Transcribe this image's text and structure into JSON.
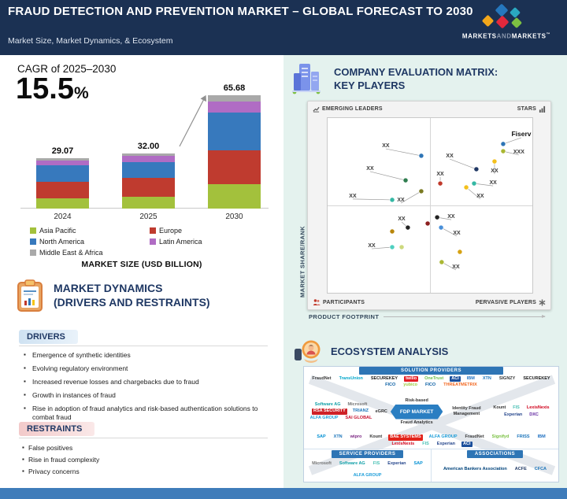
{
  "header": {
    "title": "FRAUD DETECTION AND PREVENTION MARKET – GLOBAL FORECAST TO 2030",
    "subtitle": "Market Size, Market Dynamics, & Ecosystem",
    "brand": {
      "part1": "MARKETS",
      "part2": "AND",
      "part3": "MARKETS",
      "tm": "™"
    }
  },
  "cagr": {
    "label": "CAGR of 2025–2030",
    "value": "15.5",
    "unit": "%"
  },
  "chart_data": [
    {
      "type": "bar",
      "title": "MARKET SIZE (USD BILLION)",
      "categories": [
        "2024",
        "2025",
        "2030"
      ],
      "totals": [
        29.07,
        32.0,
        65.68
      ],
      "total_labels": [
        "29.07",
        "32.00",
        "65.68"
      ],
      "series": [
        {
          "name": "Asia Pacific",
          "color": "#a3c13c",
          "values": [
            6.1,
            6.9,
            14.1
          ]
        },
        {
          "name": "Europe",
          "color": "#bf3b2f",
          "values": [
            9.5,
            10.7,
            19.6
          ]
        },
        {
          "name": "North America",
          "color": "#3779bd",
          "values": [
            9.3,
            9.3,
            21.9
          ]
        },
        {
          "name": "Latin America",
          "color": "#b06cc4",
          "values": [
            3.0,
            3.9,
            6.4
          ]
        },
        {
          "name": "Middle East & Africa",
          "color": "#a9a9a9",
          "values": [
            1.17,
            1.2,
            3.68
          ]
        }
      ],
      "ylim": [
        0,
        70
      ],
      "legend_position": "bottom",
      "grid": false
    },
    {
      "type": "scatter",
      "title_line1": "COMPANY EVALUATION MATRIX:",
      "title_line2": "KEY PLAYERS",
      "xlabel": "PRODUCT FOOTPRINT",
      "ylabel": "MARKET SHARE/RANK",
      "quadrants": {
        "top_left": "EMERGING LEADERS",
        "top_right": "STARS",
        "bottom_left": "PARTICIPANTS",
        "bottom_right": "PERVASIVE PLAYERS"
      },
      "points": [
        {
          "x": 45.4,
          "y": 21.4,
          "color": "#2e75b6",
          "label": "XX",
          "lx": 28.2,
          "ly": 16.1
        },
        {
          "x": 37.8,
          "y": 35.3,
          "color": "#2f7d4f",
          "label": "XX",
          "lx": 20.6,
          "ly": 29.0
        },
        {
          "x": 45.4,
          "y": 41.5,
          "color": "#7a7a22",
          "label": "XX",
          "lx": 35.5,
          "ly": 46.9
        },
        {
          "x": 31.3,
          "y": 46.4,
          "color": "#35b8a4",
          "label": "XX",
          "lx": 12.2,
          "ly": 44.6
        },
        {
          "x": 85.1,
          "y": 14.7,
          "color": "#2e75b6",
          "label": "Fiserv",
          "lx": 93.9,
          "ly": 9.8,
          "big": true
        },
        {
          "x": 85.1,
          "y": 18.8,
          "color": "#aab733",
          "label": "XXX",
          "lx": 92.7,
          "ly": 19.6
        },
        {
          "x": 80.9,
          "y": 24.6,
          "color": "#f3c01c",
          "label": "XX",
          "lx": 80.9,
          "ly": 30.4
        },
        {
          "x": 72.1,
          "y": 29.0,
          "color": "#203864",
          "label": "XX",
          "lx": 59.2,
          "ly": 21.9
        },
        {
          "x": 54.6,
          "y": 37.1,
          "color": "#c0392b",
          "label": "XX",
          "lx": 54.6,
          "ly": 32.1
        },
        {
          "x": 71.0,
          "y": 37.1,
          "color": "#35b8a4",
          "label": "XX",
          "lx": 80.2,
          "ly": 37.1
        },
        {
          "x": 67.2,
          "y": 39.3,
          "color": "#f3c01c",
          "label": "XX",
          "lx": 74.0,
          "ly": 44.6
        },
        {
          "x": 38.9,
          "y": 62.1,
          "color": "#222222",
          "label": "XX",
          "lx": 35.9,
          "ly": 57.6
        },
        {
          "x": 48.5,
          "y": 59.8,
          "color": "#8c1f1f"
        },
        {
          "x": 31.3,
          "y": 64.3,
          "color": "#b8860b"
        },
        {
          "x": 31.3,
          "y": 73.2,
          "color": "#4fd0c0",
          "label": "XX",
          "lx": 21.4,
          "ly": 72.8
        },
        {
          "x": 35.9,
          "y": 73.2,
          "color": "#cdd97e"
        },
        {
          "x": 53.1,
          "y": 56.3,
          "color": "#222222",
          "label": "XX",
          "lx": 59.9,
          "ly": 56.3
        },
        {
          "x": 55.0,
          "y": 62.1,
          "color": "#4a90d9",
          "label": "XX",
          "lx": 62.6,
          "ly": 65.6
        },
        {
          "x": 64.1,
          "y": 75.9,
          "color": "#d7a213"
        },
        {
          "x": 55.3,
          "y": 81.7,
          "color": "#aab733",
          "label": "XX",
          "lx": 62.2,
          "ly": 84.8
        }
      ]
    }
  ],
  "dynamics": {
    "title_line1": "MARKET DYNAMICS",
    "title_line2": "(DRIVERS AND RESTRAINTS)",
    "drivers_label": "DRIVERS",
    "drivers": [
      "Emergence of synthetic identities",
      "Evolving regulatory environment",
      "Increased revenue losses and chargebacks due to fraud",
      "Growth in instances of fraud",
      "Rise in adoption of fraud analytics and risk-based authentication solutions to combat fraud"
    ],
    "restraints_label": "RESTRAINTS",
    "restraints": [
      "False positives",
      "Rise in fraud complexity",
      "Privacy concerns"
    ]
  },
  "ecosystem": {
    "title": "ECOSYSTEM ANALYSIS",
    "banners": {
      "solution": "SOLUTION PROVIDERS",
      "service": "SERVICE PROVIDERS",
      "associations": "ASSOCIATIONS"
    },
    "hub": {
      "label": "FDP MARKET",
      "top": "Risk-based",
      "left": "eGRC",
      "right": "Identity Fraud Management",
      "bottom": "Fraud Analytics"
    },
    "solution_top": [
      {
        "t": "FraudNet",
        "c": "#3a3a3a"
      },
      {
        "t": "TransUnion",
        "c": "#00a6ca"
      },
      {
        "t": "SECUREKEY",
        "c": "#1a1a1a"
      },
      {
        "t": "twilio",
        "c": "#ffffff",
        "bg": "#e31e26"
      },
      {
        "t": "OneTrust",
        "c": "#6cc04a"
      },
      {
        "t": "ACI",
        "c": "#ffffff",
        "bg": "#1b4f9c"
      },
      {
        "t": "IBM",
        "c": "#1f70c1"
      },
      {
        "t": "XTN",
        "c": "#1b75bb"
      },
      {
        "t": "SIGNZY",
        "c": "#3a3a3a"
      },
      {
        "t": "SECUREKEY",
        "c": "#1a1a1a"
      },
      {
        "t": "FICO",
        "c": "#0a5fa4"
      },
      {
        "t": "yubico",
        "c": "#9aca3c"
      },
      {
        "t": "FICO",
        "c": "#0a5fa4"
      },
      {
        "t": "THREATMETRIX",
        "c": "#f26822"
      }
    ],
    "solution_left": [
      {
        "t": "Software AG",
        "c": "#11a0a8"
      },
      {
        "t": "Microsoft",
        "c": "#737373"
      },
      {
        "t": "RSA SECURITY",
        "c": "#ffffff",
        "bg": "#ce2127"
      },
      {
        "t": "TRIANZ",
        "c": "#1b75bb"
      },
      {
        "t": "ALFA GROUP",
        "c": "#1b9dd9"
      },
      {
        "t": "SAI GLOBAL",
        "c": "#c8102e"
      }
    ],
    "solution_right": [
      {
        "t": "Kount",
        "c": "#333333"
      },
      {
        "t": "FIS",
        "c": "#4bc1b5"
      },
      {
        "t": "LexisNexis",
        "c": "#d0021b"
      },
      {
        "t": "Experian",
        "c": "#26478d"
      },
      {
        "t": "DXC",
        "c": "#5f249f"
      }
    ],
    "solution_bottom": [
      {
        "t": "SAP",
        "c": "#008fd3"
      },
      {
        "t": "XTN",
        "c": "#1b75bb"
      },
      {
        "t": "wipro",
        "c": "#7a2582"
      },
      {
        "t": "Kount",
        "c": "#333333"
      },
      {
        "t": "BAE SYSTEMS",
        "c": "#ffffff",
        "bg": "#e2231a"
      },
      {
        "t": "ALFA GROUP",
        "c": "#1b9dd9"
      },
      {
        "t": "FraudNet",
        "c": "#3a3a3a"
      },
      {
        "t": "Signifyd",
        "c": "#7ac143"
      },
      {
        "t": "FRISS",
        "c": "#1b75bb"
      },
      {
        "t": "IBM",
        "c": "#1f70c1"
      },
      {
        "t": "LexisNexis",
        "c": "#d0021b"
      },
      {
        "t": "FIS",
        "c": "#4bc1b5"
      },
      {
        "t": "Experian",
        "c": "#26478d"
      },
      {
        "t": "ACI",
        "c": "#ffffff",
        "bg": "#1b4f9c"
      }
    ],
    "service_providers": [
      {
        "t": "Microsoft",
        "c": "#737373"
      },
      {
        "t": "Software AG",
        "c": "#11a0a8"
      },
      {
        "t": "FIS",
        "c": "#4bc1b5"
      },
      {
        "t": "Experian",
        "c": "#26478d"
      },
      {
        "t": "SAP",
        "c": "#008fd3"
      },
      {
        "t": "ALFA GROUP",
        "c": "#1b9dd9"
      }
    ],
    "associations": [
      {
        "t": "American Bankers Association",
        "c": "#00437b"
      },
      {
        "t": "ACFE",
        "c": "#1f3864"
      },
      {
        "t": "CFCA",
        "c": "#1b75bb"
      }
    ]
  }
}
